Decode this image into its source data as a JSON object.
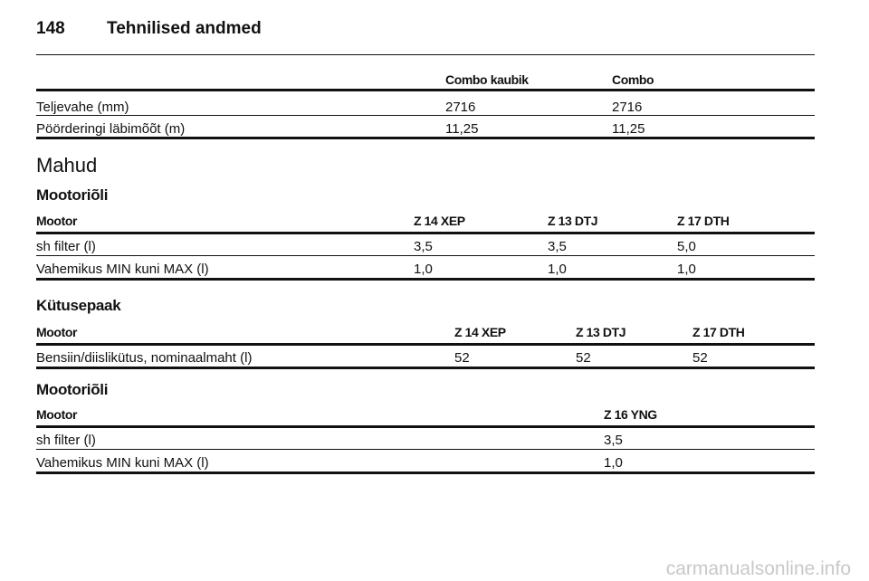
{
  "header": {
    "page": "148",
    "title": "Tehnilised andmed"
  },
  "dimensions": {
    "columns": [
      "Combo kaubik",
      "Combo"
    ],
    "rows": [
      [
        "Teljevahe (mm)",
        "2716",
        "2716"
      ],
      [
        "Pöörderingi läbimõõt (m)",
        "11,25",
        "11,25"
      ]
    ]
  },
  "section_title": "Mahud",
  "tables": [
    {
      "heading": "Mootoriõli",
      "columns": [
        "Mootor",
        "Z 14 XEP",
        "Z 13 DTJ",
        "Z 17 DTH"
      ],
      "rows": [
        [
          "sh filter (l)",
          "3,5",
          "3,5",
          "5,0"
        ],
        [
          "Vahemikus MIN kuni MAX (l)",
          "1,0",
          "1,0",
          "1,0"
        ]
      ]
    },
    {
      "heading": "Kütusepaak",
      "columns": [
        "Mootor",
        "Z 14 XEP",
        "Z 13 DTJ",
        "Z 17 DTH"
      ],
      "rows": [
        [
          "Bensiin/diislikütus, nominaalmaht (l)",
          "52",
          "52",
          "52"
        ]
      ]
    },
    {
      "heading": "Mootoriõli",
      "columns": [
        "Mootor",
        "Z 16 YNG"
      ],
      "rows": [
        [
          "sh filter (l)",
          "3,5"
        ],
        [
          "Vahemikus MIN kuni MAX (l)",
          "1,0"
        ]
      ]
    }
  ],
  "watermark": "carmanualsonline.info"
}
